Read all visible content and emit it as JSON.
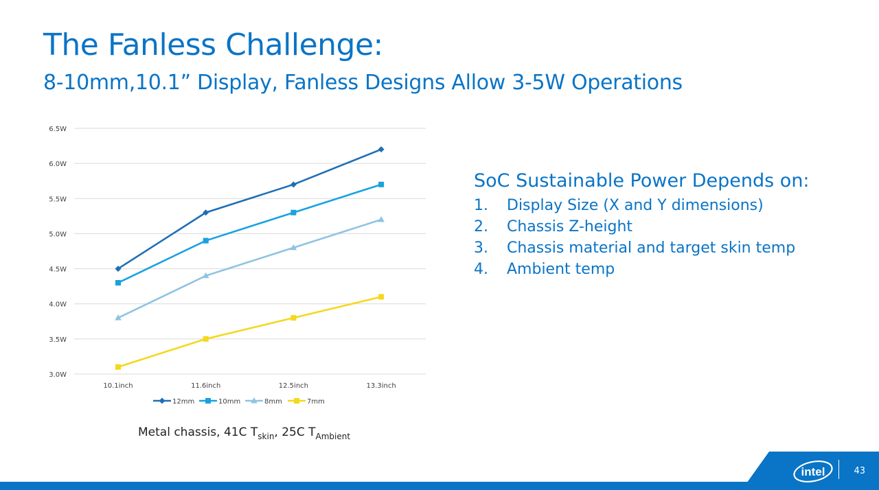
{
  "slide": {
    "title": "The Fanless Challenge:",
    "subtitle": "8-10mm,10.1” Display, Fanless Designs Allow 3-5W Operations",
    "caption": {
      "prefix": "Metal chassis, 41C T",
      "sub1": "skin",
      "middle": ", 25C T",
      "sub2": "Ambient"
    },
    "page_number": "43",
    "logo_text": "intel"
  },
  "points": {
    "heading": "SoC Sustainable Power Depends on:",
    "items": [
      {
        "num": "1.",
        "text": "Display Size (X and Y dimensions)"
      },
      {
        "num": "2.",
        "text": "Chassis Z-height"
      },
      {
        "num": "3.",
        "text": "Chassis material and target skin temp"
      },
      {
        "num": "4.",
        "text": "Ambient temp"
      }
    ]
  },
  "colors": {
    "accent": "#0a74c6",
    "footer": "#0a74c6"
  },
  "chart_data": {
    "type": "line",
    "title": "",
    "xlabel": "",
    "ylabel": "",
    "categories": [
      "10.1inch",
      "11.6inch",
      "12.5inch",
      "13.3inch"
    ],
    "ylim": [
      3.0,
      6.5
    ],
    "yticks": [
      3.0,
      3.5,
      4.0,
      4.5,
      5.0,
      5.5,
      6.0,
      6.5
    ],
    "ytick_labels": [
      "3.0W",
      "3.5W",
      "4.0W",
      "4.5W",
      "5.0W",
      "5.5W",
      "6.0W",
      "6.5W"
    ],
    "grid": true,
    "legend": "bottom",
    "series": [
      {
        "name": "12mm",
        "values": [
          4.5,
          5.3,
          5.7,
          6.2
        ],
        "color": "#1f6fb5",
        "marker": "diamond"
      },
      {
        "name": "10mm",
        "values": [
          4.3,
          4.9,
          5.3,
          5.7
        ],
        "color": "#19a2e0",
        "marker": "square"
      },
      {
        "name": "8mm",
        "values": [
          3.8,
          4.4,
          4.8,
          5.2
        ],
        "color": "#8fc3e2",
        "marker": "triangle"
      },
      {
        "name": "7mm",
        "values": [
          3.1,
          3.5,
          3.8,
          4.1
        ],
        "color": "#f4d81c",
        "marker": "square"
      }
    ]
  }
}
